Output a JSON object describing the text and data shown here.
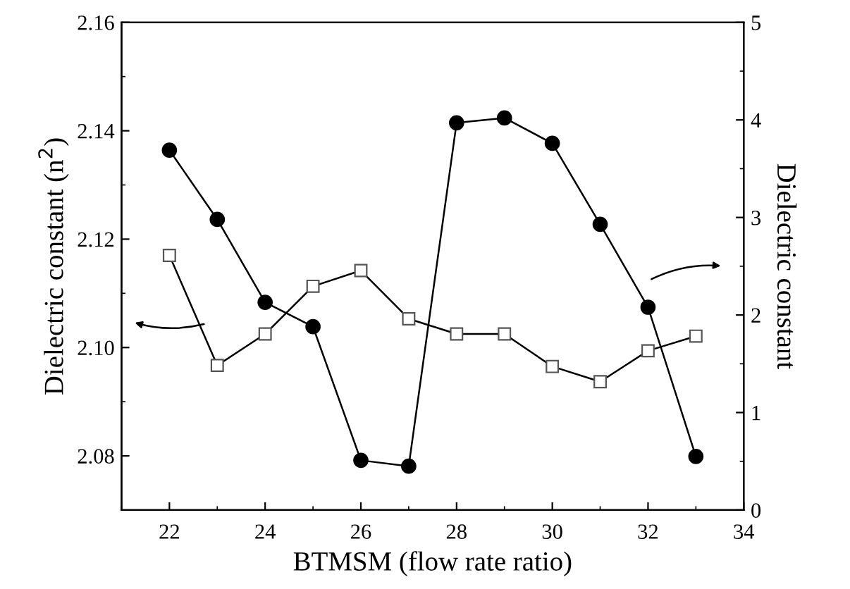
{
  "chart_data": {
    "type": "line",
    "xlabel": "BTMSM (flow rate ratio)",
    "ylabel": "Dielectric constant (n$^{2}$)",
    "y2label": "Dielectric constant",
    "x": [
      22,
      23,
      24,
      25,
      26,
      27,
      28,
      29,
      30,
      31,
      32,
      33
    ],
    "xlim": [
      21,
      34
    ],
    "xticks": [
      22,
      24,
      26,
      28,
      30,
      32,
      34
    ],
    "ylim": [
      2.07,
      2.16
    ],
    "yticks": [
      {
        "value": 2.08,
        "label": "2.08"
      },
      {
        "value": 2.1,
        "label": "2.10"
      },
      {
        "value": 2.12,
        "label": "2.12"
      },
      {
        "value": 2.14,
        "label": "2.14"
      },
      {
        "value": 2.16,
        "label": "2.16"
      }
    ],
    "y2lim": [
      0,
      5
    ],
    "y2ticks": [
      0,
      1,
      2,
      3,
      4,
      5
    ],
    "grid": false,
    "legend": false,
    "series": [
      {
        "color": "#000000",
        "marker": "square",
        "axis": "y",
        "values": [
          2.117,
          2.0967,
          2.1025,
          2.1113,
          2.1142,
          2.1053,
          2.1025,
          2.1025,
          2.0965,
          2.0937,
          2.0994,
          2.1021
        ]
      },
      {
        "color": "#000000",
        "marker": "circle",
        "axis": "y2",
        "values": [
          3.69,
          2.98,
          2.13,
          1.88,
          0.51,
          0.45,
          3.97,
          4.02,
          3.76,
          2.93,
          2.08,
          0.55
        ]
      }
    ]
  }
}
